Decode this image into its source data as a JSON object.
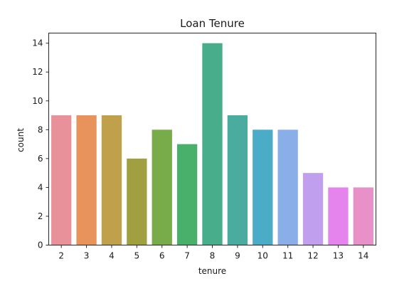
{
  "chart_data": {
    "type": "bar",
    "title": "Loan Tenure",
    "xlabel": "tenure",
    "ylabel": "count",
    "categories": [
      "2",
      "3",
      "4",
      "5",
      "6",
      "7",
      "8",
      "9",
      "10",
      "11",
      "12",
      "13",
      "14"
    ],
    "values": [
      9,
      9,
      9,
      6,
      8,
      7,
      14,
      9,
      8,
      8,
      5,
      4,
      4
    ],
    "colors": [
      "#e8919b",
      "#e8935c",
      "#c0a04a",
      "#a0a040",
      "#78ab4a",
      "#48b06a",
      "#48ad8a",
      "#4aab9f",
      "#4bacc7",
      "#8aaee8",
      "#c0a0ee",
      "#e684ee",
      "#e890c8"
    ],
    "ylim": [
      0,
      14.7
    ],
    "yticks": [
      0,
      2,
      4,
      6,
      8,
      10,
      12,
      14
    ],
    "grid": false,
    "legend": "none"
  }
}
